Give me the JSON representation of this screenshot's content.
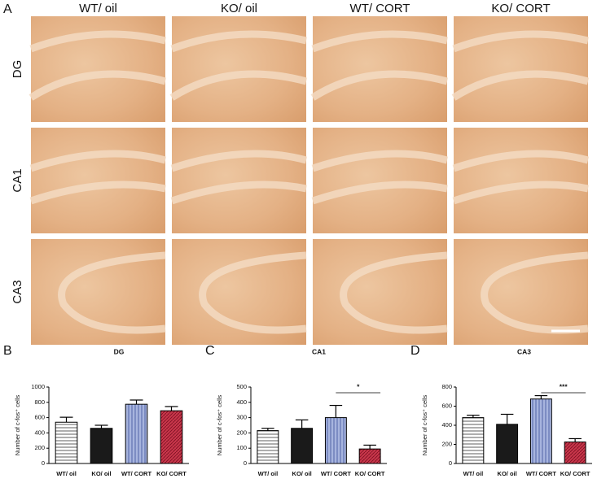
{
  "panel_labels": [
    "A",
    "B",
    "C",
    "D"
  ],
  "column_labels": [
    "WT/ oil",
    "KO/ oil",
    "WT/ CORT",
    "KO/ CORT"
  ],
  "row_labels": [
    "DG",
    "CA1",
    "CA3"
  ],
  "chart_data": [
    {
      "type": "bar",
      "title": "DG",
      "ylabel": "Number of c-fos⁺ cells",
      "categories": [
        "WT/ oil",
        "KO/ oil",
        "WT/ CORT",
        "KO/ CORT"
      ],
      "values": [
        540,
        460,
        775,
        690
      ],
      "errors": [
        65,
        40,
        55,
        55
      ],
      "colors": [
        "#ffffff",
        "#1a1a1a",
        "#a7b4de",
        "#c8364b"
      ],
      "ylim": [
        0,
        1000
      ],
      "yticks": [
        0,
        200,
        400,
        600,
        800,
        1000
      ]
    },
    {
      "type": "bar",
      "title": "CA1",
      "ylabel": "Number of c-fos⁺ cells",
      "categories": [
        "WT/ oil",
        "KO/ oil",
        "WT/ CORT",
        "KO/ CORT"
      ],
      "values": [
        215,
        230,
        300,
        95
      ],
      "errors": [
        15,
        55,
        80,
        25
      ],
      "colors": [
        "#ffffff",
        "#1a1a1a",
        "#a7b4de",
        "#c8364b"
      ],
      "ylim": [
        0,
        500
      ],
      "yticks": [
        0,
        100,
        200,
        300,
        400,
        500
      ],
      "significance": "*"
    },
    {
      "type": "bar",
      "title": "CA3",
      "ylabel": "Number of c-fos⁺ cells",
      "categories": [
        "WT/ oil",
        "KO/ oil",
        "WT/ CORT",
        "KO/ CORT"
      ],
      "values": [
        480,
        410,
        675,
        225
      ],
      "errors": [
        25,
        105,
        35,
        35
      ],
      "colors": [
        "#ffffff",
        "#1a1a1a",
        "#a7b4de",
        "#c8364b"
      ],
      "ylim": [
        0,
        800
      ],
      "yticks": [
        0,
        200,
        400,
        600,
        800
      ],
      "significance": "***"
    }
  ]
}
